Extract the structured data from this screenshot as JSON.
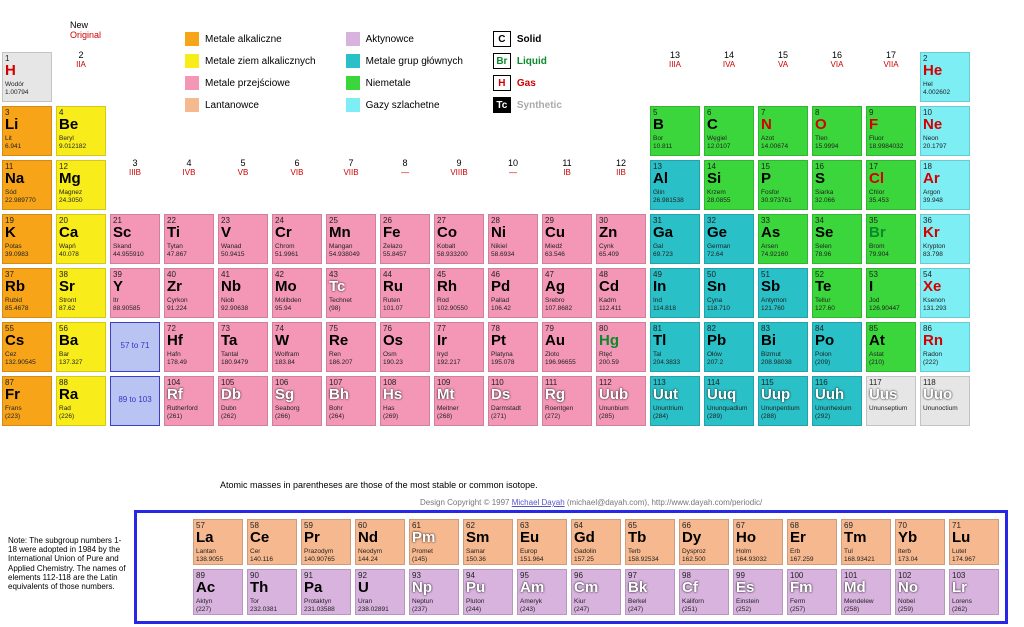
{
  "labels": {
    "new": "New",
    "original": "Original",
    "footnote": "Atomic masses in parentheses are those of the most stable or common isotope.",
    "design_pre": "Design Copyright © 1997 ",
    "design_name": "Michael Dayah",
    "design_post": " (michael@dayah.com), http://www.dayah.com/periodic/",
    "note": "Note: The subgroup numbers 1-18 were adopted in 1984 by the International Union of Pure and Applied Chemistry. The names of elements 112-118 are the Latin equivalents of those numbers.",
    "range1": "57 to 71",
    "range2": "89 to 103"
  },
  "groupLabels": [
    {
      "n": "1",
      "r": "IA"
    },
    {
      "n": "2",
      "r": "IIA"
    },
    {
      "n": "3",
      "r": "IIIB"
    },
    {
      "n": "4",
      "r": "IVB"
    },
    {
      "n": "5",
      "r": "VB"
    },
    {
      "n": "6",
      "r": "VIB"
    },
    {
      "n": "7",
      "r": "VIIB"
    },
    {
      "n": "8",
      "r": "—"
    },
    {
      "n": "9",
      "r": "VIIIB"
    },
    {
      "n": "10",
      "r": "—"
    },
    {
      "n": "11",
      "r": "IB"
    },
    {
      "n": "12",
      "r": "IIB"
    },
    {
      "n": "13",
      "r": "IIIA"
    },
    {
      "n": "14",
      "r": "IVA"
    },
    {
      "n": "15",
      "r": "VA"
    },
    {
      "n": "16",
      "r": "VIA"
    },
    {
      "n": "17",
      "r": "VIIA"
    },
    {
      "n": "18",
      "r": "VIIIA"
    }
  ],
  "categories": {
    "alkali": {
      "color": "#f7a418",
      "label": "Metale alkaliczne"
    },
    "alkaline": {
      "color": "#f8ed1b",
      "label": "Metale ziem alkalicznych"
    },
    "transition": {
      "color": "#f497b6",
      "label": "Metale przejściowe"
    },
    "lanth": {
      "color": "#f6b88f",
      "label": "Lantanowce"
    },
    "actin": {
      "color": "#d7b3de",
      "label": "Aktynowce"
    },
    "post": {
      "color": "#29c0c7",
      "label": "Metale grup głównych"
    },
    "nonmetal": {
      "color": "#3bd63b",
      "label": "Niemetale"
    },
    "noble": {
      "color": "#7ceef4",
      "label": "Gazy szlachetne"
    },
    "unknown": {
      "color": "#e6e6e6",
      "label": ""
    }
  },
  "stateLegend": [
    {
      "sym": "C",
      "label": "Solid",
      "color": "#000",
      "bg": "#fff"
    },
    {
      "sym": "Br",
      "label": "Liquid",
      "color": "#0a8a2a",
      "bg": "#fff"
    },
    {
      "sym": "H",
      "label": "Gas",
      "color": "#d40000",
      "bg": "#fff"
    },
    {
      "sym": "Tc",
      "label": "Synthetic",
      "color": "#fff",
      "bg": "#000"
    }
  ],
  "layout": [
    [
      {
        "z": 1,
        "s": "H",
        "n": "Wodór",
        "m": "1.00794",
        "c": "unknown",
        "st": "gas"
      },
      null,
      null,
      null,
      null,
      null,
      null,
      null,
      null,
      null,
      null,
      null,
      null,
      null,
      null,
      null,
      null,
      {
        "z": 2,
        "s": "He",
        "n": "Hel",
        "m": "4.002602",
        "c": "noble",
        "st": "gas"
      }
    ],
    [
      {
        "z": 3,
        "s": "Li",
        "n": "Lit",
        "m": "6.941",
        "c": "alkali"
      },
      {
        "z": 4,
        "s": "Be",
        "n": "Beryl",
        "m": "9.012182",
        "c": "alkaline"
      },
      null,
      null,
      null,
      null,
      null,
      null,
      null,
      null,
      null,
      null,
      {
        "z": 5,
        "s": "B",
        "n": "Bor",
        "m": "10.811",
        "c": "nonmetal"
      },
      {
        "z": 6,
        "s": "C",
        "n": "Węgiel",
        "m": "12.0107",
        "c": "nonmetal"
      },
      {
        "z": 7,
        "s": "N",
        "n": "Azot",
        "m": "14.00674",
        "c": "nonmetal",
        "st": "gas"
      },
      {
        "z": 8,
        "s": "O",
        "n": "Tlen",
        "m": "15.9994",
        "c": "nonmetal",
        "st": "gas"
      },
      {
        "z": 9,
        "s": "F",
        "n": "Fluor",
        "m": "18.9984032",
        "c": "nonmetal",
        "st": "gas"
      },
      {
        "z": 10,
        "s": "Ne",
        "n": "Neon",
        "m": "20.1797",
        "c": "noble",
        "st": "gas"
      }
    ],
    [
      {
        "z": 11,
        "s": "Na",
        "n": "Sód",
        "m": "22.989770",
        "c": "alkali"
      },
      {
        "z": 12,
        "s": "Mg",
        "n": "Magnez",
        "m": "24.3050",
        "c": "alkaline"
      },
      null,
      null,
      null,
      null,
      null,
      null,
      null,
      null,
      null,
      null,
      {
        "z": 13,
        "s": "Al",
        "n": "Glin",
        "m": "26.981538",
        "c": "post"
      },
      {
        "z": 14,
        "s": "Si",
        "n": "Krzem",
        "m": "28.0855",
        "c": "nonmetal"
      },
      {
        "z": 15,
        "s": "P",
        "n": "Fosfor",
        "m": "30.973761",
        "c": "nonmetal"
      },
      {
        "z": 16,
        "s": "S",
        "n": "Siarka",
        "m": "32.066",
        "c": "nonmetal"
      },
      {
        "z": 17,
        "s": "Cl",
        "n": "Chlor",
        "m": "35.453",
        "c": "nonmetal",
        "st": "gas"
      },
      {
        "z": 18,
        "s": "Ar",
        "n": "Argon",
        "m": "39.948",
        "c": "noble",
        "st": "gas"
      }
    ],
    [
      {
        "z": 19,
        "s": "K",
        "n": "Potas",
        "m": "39.0983",
        "c": "alkali"
      },
      {
        "z": 20,
        "s": "Ca",
        "n": "Wapń",
        "m": "40.078",
        "c": "alkaline"
      },
      {
        "z": 21,
        "s": "Sc",
        "n": "Skand",
        "m": "44.955910",
        "c": "transition"
      },
      {
        "z": 22,
        "s": "Ti",
        "n": "Tytan",
        "m": "47.867",
        "c": "transition"
      },
      {
        "z": 23,
        "s": "V",
        "n": "Wanad",
        "m": "50.9415",
        "c": "transition"
      },
      {
        "z": 24,
        "s": "Cr",
        "n": "Chrom",
        "m": "51.9961",
        "c": "transition"
      },
      {
        "z": 25,
        "s": "Mn",
        "n": "Mangan",
        "m": "54.938049",
        "c": "transition"
      },
      {
        "z": 26,
        "s": "Fe",
        "n": "Żelazo",
        "m": "55.8457",
        "c": "transition"
      },
      {
        "z": 27,
        "s": "Co",
        "n": "Kobalt",
        "m": "58.933200",
        "c": "transition"
      },
      {
        "z": 28,
        "s": "Ni",
        "n": "Nikiel",
        "m": "58.6934",
        "c": "transition"
      },
      {
        "z": 29,
        "s": "Cu",
        "n": "Miedź",
        "m": "63.546",
        "c": "transition"
      },
      {
        "z": 30,
        "s": "Zn",
        "n": "Cynk",
        "m": "65.409",
        "c": "transition"
      },
      {
        "z": 31,
        "s": "Ga",
        "n": "Gal",
        "m": "69.723",
        "c": "post"
      },
      {
        "z": 32,
        "s": "Ge",
        "n": "German",
        "m": "72.64",
        "c": "post"
      },
      {
        "z": 33,
        "s": "As",
        "n": "Arsen",
        "m": "74.92160",
        "c": "nonmetal"
      },
      {
        "z": 34,
        "s": "Se",
        "n": "Selen",
        "m": "78.96",
        "c": "nonmetal"
      },
      {
        "z": 35,
        "s": "Br",
        "n": "Brom",
        "m": "79.904",
        "c": "nonmetal",
        "st": "liquid"
      },
      {
        "z": 36,
        "s": "Kr",
        "n": "Krypton",
        "m": "83.798",
        "c": "noble",
        "st": "gas"
      }
    ],
    [
      {
        "z": 37,
        "s": "Rb",
        "n": "Rubid",
        "m": "85.4678",
        "c": "alkali"
      },
      {
        "z": 38,
        "s": "Sr",
        "n": "Stront",
        "m": "87.62",
        "c": "alkaline"
      },
      {
        "z": 39,
        "s": "Y",
        "n": "Itr",
        "m": "88.90585",
        "c": "transition"
      },
      {
        "z": 40,
        "s": "Zr",
        "n": "Cyrkon",
        "m": "91.224",
        "c": "transition"
      },
      {
        "z": 41,
        "s": "Nb",
        "n": "Niob",
        "m": "92.90638",
        "c": "transition"
      },
      {
        "z": 42,
        "s": "Mo",
        "n": "Molibden",
        "m": "95.94",
        "c": "transition"
      },
      {
        "z": 43,
        "s": "Tc",
        "n": "Technet",
        "m": "(98)",
        "c": "transition",
        "st": "synth"
      },
      {
        "z": 44,
        "s": "Ru",
        "n": "Ruten",
        "m": "101.07",
        "c": "transition"
      },
      {
        "z": 45,
        "s": "Rh",
        "n": "Rod",
        "m": "102.90550",
        "c": "transition"
      },
      {
        "z": 46,
        "s": "Pd",
        "n": "Pallad",
        "m": "106.42",
        "c": "transition"
      },
      {
        "z": 47,
        "s": "Ag",
        "n": "Srebro",
        "m": "107.8682",
        "c": "transition"
      },
      {
        "z": 48,
        "s": "Cd",
        "n": "Kadm",
        "m": "112.411",
        "c": "transition"
      },
      {
        "z": 49,
        "s": "In",
        "n": "Ind",
        "m": "114.818",
        "c": "post"
      },
      {
        "z": 50,
        "s": "Sn",
        "n": "Cyna",
        "m": "118.710",
        "c": "post"
      },
      {
        "z": 51,
        "s": "Sb",
        "n": "Antymon",
        "m": "121.760",
        "c": "post"
      },
      {
        "z": 52,
        "s": "Te",
        "n": "Tellur",
        "m": "127.60",
        "c": "nonmetal"
      },
      {
        "z": 53,
        "s": "I",
        "n": "Jod",
        "m": "126.90447",
        "c": "nonmetal"
      },
      {
        "z": 54,
        "s": "Xe",
        "n": "Ksenon",
        "m": "131.293",
        "c": "noble",
        "st": "gas"
      }
    ],
    [
      {
        "z": 55,
        "s": "Cs",
        "n": "Cez",
        "m": "132.90545",
        "c": "alkali"
      },
      {
        "z": 56,
        "s": "Ba",
        "n": "Bar",
        "m": "137.327",
        "c": "alkaline"
      },
      {
        "lant": 1
      },
      {
        "z": 72,
        "s": "Hf",
        "n": "Hafn",
        "m": "178.49",
        "c": "transition"
      },
      {
        "z": 73,
        "s": "Ta",
        "n": "Tantal",
        "m": "180.9479",
        "c": "transition"
      },
      {
        "z": 74,
        "s": "W",
        "n": "Wolfram",
        "m": "183.84",
        "c": "transition"
      },
      {
        "z": 75,
        "s": "Re",
        "n": "Ren",
        "m": "186.207",
        "c": "transition"
      },
      {
        "z": 76,
        "s": "Os",
        "n": "Osm",
        "m": "190.23",
        "c": "transition"
      },
      {
        "z": 77,
        "s": "Ir",
        "n": "Iryd",
        "m": "192.217",
        "c": "transition"
      },
      {
        "z": 78,
        "s": "Pt",
        "n": "Platyna",
        "m": "195.078",
        "c": "transition"
      },
      {
        "z": 79,
        "s": "Au",
        "n": "Złoto",
        "m": "196.96655",
        "c": "transition"
      },
      {
        "z": 80,
        "s": "Hg",
        "n": "Rtęć",
        "m": "200.59",
        "c": "transition",
        "st": "liquid"
      },
      {
        "z": 81,
        "s": "Tl",
        "n": "Tal",
        "m": "204.3833",
        "c": "post"
      },
      {
        "z": 82,
        "s": "Pb",
        "n": "Ołów",
        "m": "207.2",
        "c": "post"
      },
      {
        "z": 83,
        "s": "Bi",
        "n": "Bizmut",
        "m": "208.98038",
        "c": "post"
      },
      {
        "z": 84,
        "s": "Po",
        "n": "Polon",
        "m": "(209)",
        "c": "post"
      },
      {
        "z": 85,
        "s": "At",
        "n": "Astat",
        "m": "(210)",
        "c": "nonmetal"
      },
      {
        "z": 86,
        "s": "Rn",
        "n": "Radon",
        "m": "(222)",
        "c": "noble",
        "st": "gas"
      }
    ],
    [
      {
        "z": 87,
        "s": "Fr",
        "n": "Frans",
        "m": "(223)",
        "c": "alkali"
      },
      {
        "z": 88,
        "s": "Ra",
        "n": "Rad",
        "m": "(226)",
        "c": "alkaline"
      },
      {
        "lant": 2
      },
      {
        "z": 104,
        "s": "Rf",
        "n": "Rutherford",
        "m": "(261)",
        "c": "transition",
        "st": "synth"
      },
      {
        "z": 105,
        "s": "Db",
        "n": "Dubn",
        "m": "(262)",
        "c": "transition",
        "st": "synth"
      },
      {
        "z": 106,
        "s": "Sg",
        "n": "Seaborg",
        "m": "(266)",
        "c": "transition",
        "st": "synth"
      },
      {
        "z": 107,
        "s": "Bh",
        "n": "Bohr",
        "m": "(264)",
        "c": "transition",
        "st": "synth"
      },
      {
        "z": 108,
        "s": "Hs",
        "n": "Has",
        "m": "(269)",
        "c": "transition",
        "st": "synth"
      },
      {
        "z": 109,
        "s": "Mt",
        "n": "Meitner",
        "m": "(268)",
        "c": "transition",
        "st": "synth"
      },
      {
        "z": 110,
        "s": "Ds",
        "n": "Darmstadt",
        "m": "(271)",
        "c": "transition",
        "st": "synth"
      },
      {
        "z": 111,
        "s": "Rg",
        "n": "Roentgen",
        "m": "(272)",
        "c": "transition",
        "st": "synth"
      },
      {
        "z": 112,
        "s": "Uub",
        "n": "Ununbium",
        "m": "(285)",
        "c": "transition",
        "st": "synth"
      },
      {
        "z": 113,
        "s": "Uut",
        "n": "Ununtrium",
        "m": "(284)",
        "c": "post",
        "st": "synth"
      },
      {
        "z": 114,
        "s": "Uuq",
        "n": "Ununquadium",
        "m": "(289)",
        "c": "post",
        "st": "synth"
      },
      {
        "z": 115,
        "s": "Uup",
        "n": "Ununpentium",
        "m": "(288)",
        "c": "post",
        "st": "synth"
      },
      {
        "z": 116,
        "s": "Uuh",
        "n": "Ununhexium",
        "m": "(292)",
        "c": "post",
        "st": "synth"
      },
      {
        "z": 117,
        "s": "Uus",
        "n": "Ununseptium",
        "m": "",
        "c": "unknown",
        "st": "synth"
      },
      {
        "z": 118,
        "s": "Uuo",
        "n": "Ununoctium",
        "m": "",
        "c": "unknown",
        "st": "synth"
      }
    ]
  ],
  "fblock": [
    [
      {
        "z": 57,
        "s": "La",
        "n": "Lantan",
        "m": "138.9055",
        "c": "lanth"
      },
      {
        "z": 58,
        "s": "Ce",
        "n": "Cer",
        "m": "140.116",
        "c": "lanth"
      },
      {
        "z": 59,
        "s": "Pr",
        "n": "Prazodym",
        "m": "140.90765",
        "c": "lanth"
      },
      {
        "z": 60,
        "s": "Nd",
        "n": "Neodym",
        "m": "144.24",
        "c": "lanth"
      },
      {
        "z": 61,
        "s": "Pm",
        "n": "Promet",
        "m": "(145)",
        "c": "lanth",
        "st": "synth"
      },
      {
        "z": 62,
        "s": "Sm",
        "n": "Samar",
        "m": "150.36",
        "c": "lanth"
      },
      {
        "z": 63,
        "s": "Eu",
        "n": "Europ",
        "m": "151.964",
        "c": "lanth"
      },
      {
        "z": 64,
        "s": "Gd",
        "n": "Gadolin",
        "m": "157.25",
        "c": "lanth"
      },
      {
        "z": 65,
        "s": "Tb",
        "n": "Terb",
        "m": "158.92534",
        "c": "lanth"
      },
      {
        "z": 66,
        "s": "Dy",
        "n": "Dysproz",
        "m": "162.500",
        "c": "lanth"
      },
      {
        "z": 67,
        "s": "Ho",
        "n": "Holm",
        "m": "164.93032",
        "c": "lanth"
      },
      {
        "z": 68,
        "s": "Er",
        "n": "Erb",
        "m": "167.259",
        "c": "lanth"
      },
      {
        "z": 69,
        "s": "Tm",
        "n": "Tul",
        "m": "168.93421",
        "c": "lanth"
      },
      {
        "z": 70,
        "s": "Yb",
        "n": "Iterb",
        "m": "173.04",
        "c": "lanth"
      },
      {
        "z": 71,
        "s": "Lu",
        "n": "Lutet",
        "m": "174.967",
        "c": "lanth"
      }
    ],
    [
      {
        "z": 89,
        "s": "Ac",
        "n": "Aktyn",
        "m": "(227)",
        "c": "actin"
      },
      {
        "z": 90,
        "s": "Th",
        "n": "Tor",
        "m": "232.0381",
        "c": "actin"
      },
      {
        "z": 91,
        "s": "Pa",
        "n": "Protaktyn",
        "m": "231.03588",
        "c": "actin"
      },
      {
        "z": 92,
        "s": "U",
        "n": "Uran",
        "m": "238.02891",
        "c": "actin"
      },
      {
        "z": 93,
        "s": "Np",
        "n": "Neptun",
        "m": "(237)",
        "c": "actin",
        "st": "synth"
      },
      {
        "z": 94,
        "s": "Pu",
        "n": "Pluton",
        "m": "(244)",
        "c": "actin",
        "st": "synth"
      },
      {
        "z": 95,
        "s": "Am",
        "n": "Ameryk",
        "m": "(243)",
        "c": "actin",
        "st": "synth"
      },
      {
        "z": 96,
        "s": "Cm",
        "n": "Kiur",
        "m": "(247)",
        "c": "actin",
        "st": "synth"
      },
      {
        "z": 97,
        "s": "Bk",
        "n": "Berkel",
        "m": "(247)",
        "c": "actin",
        "st": "synth"
      },
      {
        "z": 98,
        "s": "Cf",
        "n": "Kaliforn",
        "m": "(251)",
        "c": "actin",
        "st": "synth"
      },
      {
        "z": 99,
        "s": "Es",
        "n": "Einstein",
        "m": "(252)",
        "c": "actin",
        "st": "synth"
      },
      {
        "z": 100,
        "s": "Fm",
        "n": "Ferm",
        "m": "(257)",
        "c": "actin",
        "st": "synth"
      },
      {
        "z": 101,
        "s": "Md",
        "n": "Mendelew",
        "m": "(258)",
        "c": "actin",
        "st": "synth"
      },
      {
        "z": 102,
        "s": "No",
        "n": "Nobel",
        "m": "(259)",
        "c": "actin",
        "st": "synth"
      },
      {
        "z": 103,
        "s": "Lr",
        "n": "Lorens",
        "m": "(262)",
        "c": "actin",
        "st": "synth"
      }
    ]
  ],
  "stateColors": {
    "solid": "#000",
    "liquid": "#0a8a2a",
    "gas": "#d40000",
    "synth": "#fff"
  }
}
